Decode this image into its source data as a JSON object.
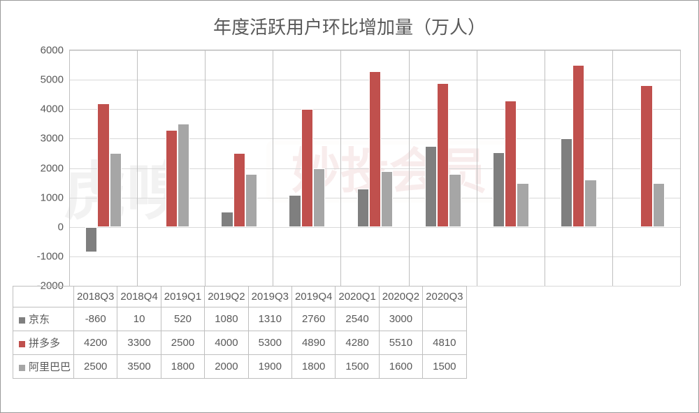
{
  "chart": {
    "type": "bar",
    "title": "年度活跃用户环比增加量（万人）",
    "title_fontsize": 26,
    "title_color": "#595959",
    "background_color": "#ffffff",
    "grid_color": "#d9d9d9",
    "border_color": "#bfbfbf",
    "label_fontsize": 15,
    "label_color": "#595959",
    "ylim": [
      -2000,
      6000
    ],
    "ytick_step": 1000,
    "yticks": [
      -2000,
      -1000,
      0,
      1000,
      2000,
      3000,
      4000,
      5000,
      6000
    ],
    "categories": [
      "2018Q3",
      "2018Q4",
      "2019Q1",
      "2019Q2",
      "2019Q3",
      "2019Q4",
      "2020Q1",
      "2020Q2",
      "2020Q3"
    ],
    "series": [
      {
        "name": "京东",
        "color": "#7f7f7f",
        "values": [
          -860,
          10,
          520,
          1080,
          1310,
          2760,
          2540,
          3000,
          null
        ]
      },
      {
        "name": "拼多多",
        "color": "#c0504d",
        "values": [
          4200,
          3300,
          2500,
          4000,
          5300,
          4890,
          4280,
          5510,
          4810
        ]
      },
      {
        "name": "阿里巴巴",
        "color": "#a6a6a6",
        "values": [
          2500,
          3500,
          1800,
          2000,
          1900,
          1800,
          1500,
          1600,
          1500
        ]
      }
    ],
    "bar_width_pct": 18,
    "legend_markers": [
      "■",
      "■",
      "■"
    ]
  }
}
